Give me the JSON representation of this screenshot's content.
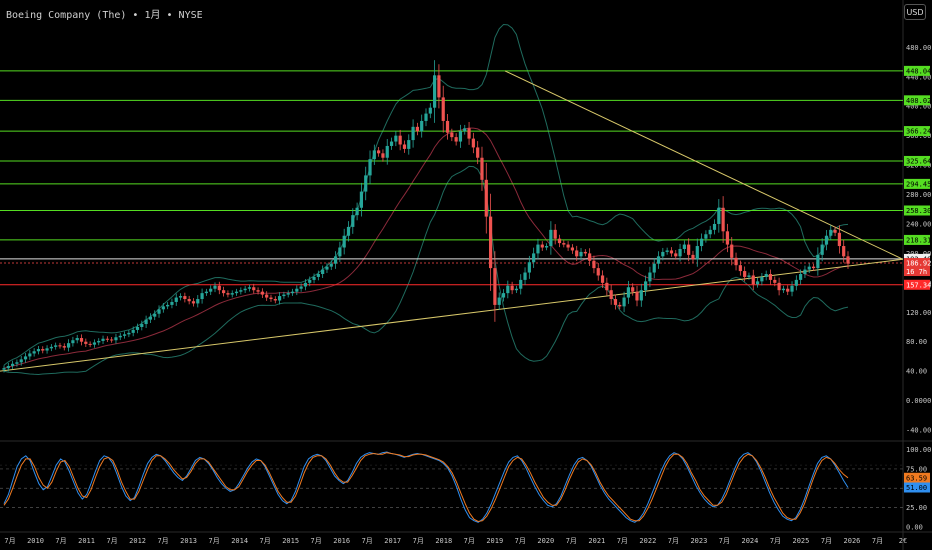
{
  "header": {
    "title": "Boeing Company (The) • 1月 • NYSE",
    "currency_button": "USD"
  },
  "colors": {
    "up": "#26a69a",
    "down": "#ef5350",
    "level_green": "#55dd22",
    "level_red": "#ff2a2a",
    "trendline": "#d8c86a",
    "bollinger": "#1f6b5e",
    "ma": "#8b2a3a",
    "stoch_k": "#2f8ff0",
    "stoch_d": "#f07a20"
  },
  "chart_data": [
    {
      "type": "candlestick",
      "title": "Boeing Company (The) • 1月 • NYSE",
      "ylim": [
        -40,
        490
      ],
      "y_ticks": [
        "480.00",
        "440.00",
        "400.00",
        "360.00",
        "320.00",
        "280.00",
        "240.00",
        "200.00",
        "160.00",
        "120.00",
        "80.00",
        "40.00",
        "0.0000",
        "-40.00"
      ],
      "green_levels": [
        {
          "value": 448.04,
          "label": "448.04"
        },
        {
          "value": 408.02,
          "label": "408.02"
        },
        {
          "value": 366.24,
          "label": "366.24"
        },
        {
          "value": 325.64,
          "label": "325.64"
        },
        {
          "value": 294.45,
          "label": "294.45"
        },
        {
          "value": 258.3,
          "label": "258.30"
        },
        {
          "value": 218.31,
          "label": "218.31"
        }
      ],
      "red_levels": [
        {
          "value": 157.34,
          "label": "157.34"
        }
      ],
      "price_labels": [
        {
          "value": 192.48,
          "label": "192.48",
          "style": "white"
        },
        {
          "value": 186.92,
          "label": "186.92",
          "style": "red"
        },
        {
          "label": "16 7h",
          "style": "red"
        }
      ],
      "close_series": [
        44,
        47,
        50,
        52,
        56,
        60,
        64,
        67,
        70,
        68,
        71,
        73,
        75,
        74,
        72,
        78,
        82,
        85,
        80,
        77,
        76,
        79,
        81,
        84,
        83,
        82,
        86,
        88,
        90,
        92,
        96,
        100,
        104,
        110,
        114,
        118,
        124,
        128,
        130,
        134,
        140,
        142,
        138,
        135,
        132,
        138,
        146,
        148,
        152,
        156,
        150,
        146,
        144,
        146,
        148,
        150,
        152,
        154,
        150,
        148,
        144,
        140,
        138,
        136,
        142,
        144,
        146,
        148,
        152,
        155,
        160,
        164,
        168,
        172,
        178,
        182,
        186,
        196,
        208,
        224,
        236,
        252,
        262,
        284,
        306,
        328,
        340,
        336,
        330,
        346,
        352,
        360,
        348,
        342,
        354,
        372,
        366,
        380,
        390,
        398,
        442,
        412,
        380,
        364,
        358,
        352,
        366,
        370,
        356,
        344,
        330,
        300,
        250,
        180,
        130,
        140,
        146,
        156,
        150,
        152,
        164,
        174,
        188,
        200,
        212,
        208,
        210,
        232,
        220,
        214,
        212,
        208,
        204,
        196,
        202,
        200,
        190,
        180,
        170,
        160,
        150,
        138,
        130,
        128,
        140,
        154,
        148,
        136,
        150,
        162,
        174,
        186,
        196,
        202,
        204,
        200,
        196,
        206,
        212,
        198,
        192,
        210,
        220,
        226,
        232,
        240,
        262,
        230,
        212,
        194,
        184,
        176,
        168,
        170,
        158,
        162,
        168,
        172,
        164,
        160,
        150,
        152,
        148,
        156,
        164,
        172,
        178,
        182,
        180,
        198,
        212,
        224,
        232,
        228,
        210,
        196,
        186
      ],
      "x_labels": [
        "7月",
        "2010",
        "7月",
        "2011",
        "7月",
        "2012",
        "7月",
        "2013",
        "7月",
        "2014",
        "7月",
        "2015",
        "7月",
        "2016",
        "7月",
        "2017",
        "7月",
        "2018",
        "7月",
        "2019",
        "7月",
        "2020",
        "7月",
        "2021",
        "7月",
        "2022",
        "7月",
        "2023",
        "7月",
        "2024",
        "7月",
        "2025",
        "7月",
        "2026",
        "7月",
        "2€"
      ]
    },
    {
      "type": "line",
      "title": "",
      "ylim": [
        -4,
        106
      ],
      "y_ticks": [
        "100.00",
        "75.00",
        "50.00",
        "25.00",
        "0.00"
      ],
      "value_labels": [
        {
          "value": 63.59,
          "label": "63.59",
          "color": "#f07a20"
        },
        {
          "value": 51.0,
          "label": "51.00",
          "color": "#2f8ff0"
        }
      ],
      "series": [
        {
          "values": [
            30,
            42,
            60,
            78,
            88,
            92,
            86,
            70,
            56,
            48,
            52,
            66,
            80,
            88,
            84,
            72,
            58,
            44,
            36,
            42,
            56,
            72,
            86,
            92,
            90,
            82,
            68,
            52,
            40,
            34,
            38,
            52,
            68,
            82,
            90,
            94,
            92,
            86,
            78,
            70,
            64,
            60,
            66,
            76,
            86,
            90,
            88,
            82,
            74,
            64,
            56,
            50,
            46,
            48,
            56,
            66,
            76,
            84,
            88,
            86,
            78,
            66,
            54,
            42,
            34,
            30,
            34,
            46,
            62,
            78,
            88,
            92,
            94,
            92,
            86,
            76,
            66,
            60,
            56,
            60,
            70,
            82,
            90,
            94,
            96,
            95,
            94,
            96,
            97,
            95,
            94,
            92,
            90,
            92,
            94,
            95,
            94,
            92,
            90,
            88,
            86,
            82,
            76,
            66,
            52,
            36,
            22,
            12,
            8,
            6,
            10,
            18,
            30,
            44,
            58,
            72,
            84,
            90,
            92,
            86,
            76,
            64,
            52,
            42,
            34,
            28,
            26,
            30,
            40,
            54,
            68,
            80,
            88,
            90,
            86,
            78,
            66,
            54,
            44,
            36,
            30,
            24,
            18,
            12,
            8,
            6,
            10,
            18,
            30,
            44,
            58,
            72,
            84,
            92,
            96,
            94,
            88,
            78,
            66,
            54,
            44,
            36,
            30,
            26,
            28,
            36,
            48,
            62,
            76,
            88,
            94,
            96,
            92,
            84,
            72,
            58,
            44,
            32,
            22,
            14,
            10,
            8,
            12,
            22,
            36,
            52,
            68,
            82,
            90,
            92,
            88,
            80,
            70,
            60,
            51
          ]
        },
        {
          "values": [
            28,
            36,
            50,
            66,
            80,
            88,
            88,
            78,
            64,
            54,
            50,
            58,
            72,
            84,
            86,
            78,
            64,
            50,
            40,
            38,
            48,
            64,
            78,
            88,
            90,
            86,
            74,
            58,
            46,
            36,
            36,
            46,
            60,
            74,
            86,
            92,
            92,
            88,
            82,
            74,
            68,
            62,
            64,
            72,
            82,
            88,
            88,
            84,
            76,
            68,
            60,
            52,
            48,
            48,
            52,
            62,
            72,
            80,
            86,
            86,
            80,
            70,
            58,
            46,
            38,
            32,
            32,
            40,
            54,
            70,
            82,
            90,
            92,
            92,
            88,
            80,
            70,
            62,
            58,
            58,
            66,
            76,
            86,
            92,
            94,
            95,
            94,
            94,
            96,
            95,
            94,
            93,
            91,
            91,
            93,
            94,
            94,
            93,
            91,
            89,
            87,
            84,
            78,
            70,
            58,
            44,
            30,
            18,
            10,
            7,
            8,
            14,
            24,
            36,
            50,
            64,
            78,
            86,
            90,
            88,
            80,
            70,
            58,
            48,
            38,
            32,
            28,
            28,
            36,
            48,
            62,
            74,
            84,
            88,
            86,
            80,
            70,
            58,
            48,
            40,
            34,
            28,
            22,
            16,
            10,
            8,
            8,
            14,
            24,
            36,
            50,
            64,
            78,
            88,
            94,
            94,
            90,
            82,
            70,
            60,
            48,
            40,
            34,
            28,
            28,
            32,
            42,
            56,
            70,
            82,
            90,
            94,
            92,
            86,
            76,
            64,
            50,
            38,
            28,
            18,
            12,
            10,
            10,
            18,
            30,
            46,
            62,
            76,
            86,
            90,
            88,
            82,
            74,
            68,
            63.59
          ]
        }
      ]
    }
  ]
}
